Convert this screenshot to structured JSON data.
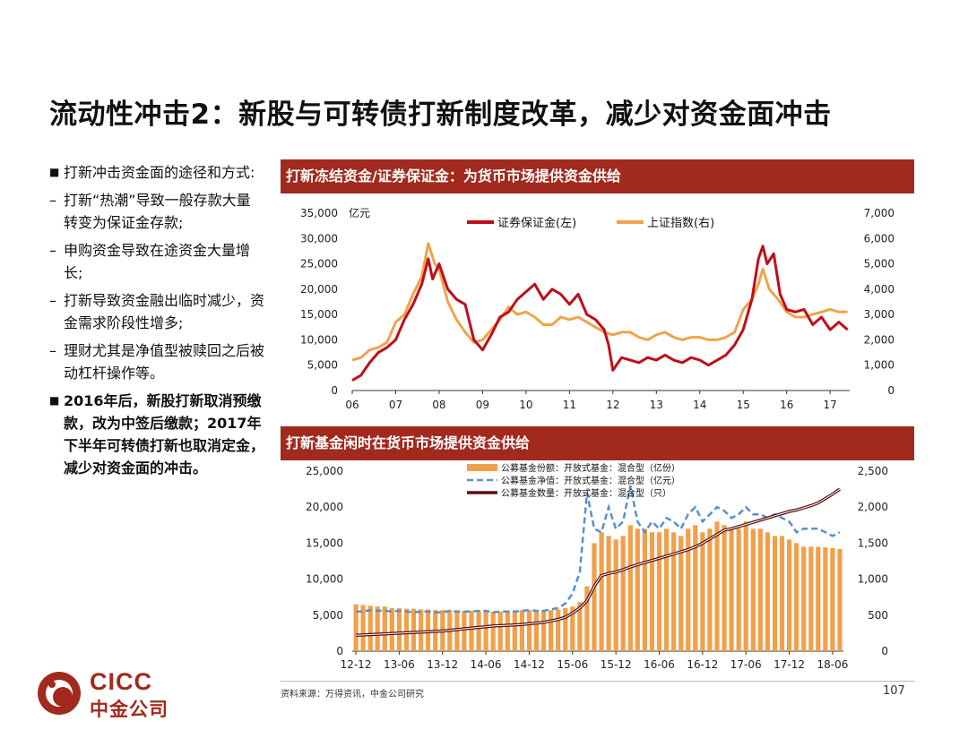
{
  "title": "流动性冲击2：新股与可转债打新制度改革，减少对资金面冲击",
  "bullets": [
    {
      "kind": "main",
      "marker": "■",
      "text": "打新冲击资金面的途径和方式:"
    },
    {
      "kind": "sub",
      "marker": "–",
      "text": "打新“热潮”导致一般存款大量转变为保证金存款;"
    },
    {
      "kind": "sub",
      "marker": "–",
      "text": "申购资金导致在途资金大量增长;"
    },
    {
      "kind": "sub",
      "marker": "–",
      "text": "打新导致资金融出临时减少，资金需求阶段性增多;"
    },
    {
      "kind": "sub",
      "marker": "–",
      "text": "理财尤其是净值型被赎回之后被动杠杆操作等。"
    },
    {
      "kind": "strong",
      "marker": "■",
      "text": "2016年后，新股打新取消预缴款，改为中签后缴款；2017年下半年可转债打新也取消定金，减少对资金面的冲击。"
    }
  ],
  "panel1": {
    "title": "打新冻结资金/证券保证金：为货币市场提供资金供给"
  },
  "panel2": {
    "title": "打新基金闲时在货币市场提供资金供给"
  },
  "source": "资料来源：万得资讯，中金公司研究",
  "page_number": "107",
  "logo": {
    "en": "CICC",
    "cn": "中金公司"
  },
  "colors": {
    "brand": "#a2291e",
    "deposit": "#c00d1a",
    "index": "#eea44c",
    "bar": "#f0a04b",
    "nav": "#5a8fd0",
    "count": "#5a1010"
  },
  "chart_data": [
    {
      "type": "line",
      "unit_label": "亿元",
      "x_ticks": [
        "06",
        "07",
        "08",
        "09",
        "10",
        "11",
        "12",
        "13",
        "14",
        "15",
        "16",
        "17"
      ],
      "ylim_left": [
        0,
        35000
      ],
      "yticks_left": [
        "0",
        "5,000",
        "10,000",
        "15,000",
        "20,000",
        "25,000",
        "30,000",
        "35,000"
      ],
      "ylim_right": [
        0,
        7000
      ],
      "yticks_right": [
        "0",
        "1,000",
        "2,000",
        "3,000",
        "4,000",
        "5,000",
        "6,000",
        "7,000"
      ],
      "legend": "top",
      "series": [
        {
          "name": "证券保证金(左)",
          "axis": "left",
          "x": [
            2006.0,
            2006.2,
            2006.4,
            2006.6,
            2006.8,
            2007.0,
            2007.2,
            2007.4,
            2007.6,
            2007.75,
            2007.85,
            2008.0,
            2008.2,
            2008.4,
            2008.6,
            2008.8,
            2009.0,
            2009.2,
            2009.4,
            2009.6,
            2009.8,
            2010.0,
            2010.2,
            2010.4,
            2010.6,
            2010.8,
            2011.0,
            2011.2,
            2011.4,
            2011.6,
            2011.8,
            2011.9,
            2012.0,
            2012.2,
            2012.4,
            2012.6,
            2012.8,
            2013.0,
            2013.2,
            2013.4,
            2013.6,
            2013.8,
            2014.0,
            2014.2,
            2014.4,
            2014.6,
            2014.8,
            2015.0,
            2015.2,
            2015.35,
            2015.45,
            2015.55,
            2015.7,
            2015.85,
            2016.0,
            2016.2,
            2016.4,
            2016.6,
            2016.8,
            2017.0,
            2017.2,
            2017.4
          ],
          "y": [
            2000,
            3000,
            5500,
            7500,
            8500,
            10000,
            14000,
            17000,
            21000,
            26000,
            22000,
            25000,
            20000,
            18000,
            17000,
            10000,
            8000,
            11000,
            14500,
            15500,
            18000,
            19500,
            21000,
            18000,
            20000,
            19000,
            17000,
            19000,
            15000,
            14000,
            12000,
            9000,
            4000,
            6500,
            6000,
            5500,
            6500,
            6000,
            7000,
            6000,
            5500,
            6500,
            6000,
            5000,
            6000,
            7000,
            9000,
            12000,
            18000,
            26000,
            28500,
            25000,
            27000,
            19000,
            16000,
            15500,
            16000,
            13000,
            14500,
            12000,
            13500,
            12000
          ]
        },
        {
          "name": "上证指数(右)",
          "axis": "right",
          "x": [
            2006.0,
            2006.2,
            2006.4,
            2006.6,
            2006.8,
            2007.0,
            2007.2,
            2007.4,
            2007.6,
            2007.75,
            2007.9,
            2008.0,
            2008.2,
            2008.4,
            2008.6,
            2008.8,
            2009.0,
            2009.2,
            2009.4,
            2009.6,
            2009.8,
            2010.0,
            2010.2,
            2010.4,
            2010.6,
            2010.8,
            2011.0,
            2011.2,
            2011.4,
            2011.6,
            2011.8,
            2012.0,
            2012.2,
            2012.4,
            2012.6,
            2012.8,
            2013.0,
            2013.2,
            2013.4,
            2013.6,
            2013.8,
            2014.0,
            2014.2,
            2014.4,
            2014.6,
            2014.8,
            2015.0,
            2015.2,
            2015.35,
            2015.45,
            2015.6,
            2015.8,
            2016.0,
            2016.2,
            2016.4,
            2016.6,
            2016.8,
            2017.0,
            2017.2,
            2017.4
          ],
          "y": [
            1200,
            1300,
            1600,
            1700,
            1900,
            2700,
            3000,
            3800,
            4500,
            5800,
            5000,
            4800,
            3500,
            2800,
            2300,
            1900,
            2000,
            2400,
            2800,
            3300,
            3000,
            3100,
            2900,
            2600,
            2600,
            2900,
            2800,
            2900,
            2700,
            2500,
            2300,
            2200,
            2300,
            2300,
            2100,
            2000,
            2200,
            2300,
            2100,
            2000,
            2100,
            2100,
            2000,
            2000,
            2100,
            2300,
            3200,
            3600,
            4200,
            4800,
            4000,
            3600,
            3100,
            2900,
            2900,
            3000,
            3100,
            3200,
            3100,
            3100
          ]
        }
      ]
    },
    {
      "type": "bar",
      "x_ticks": [
        "12-12",
        "13-06",
        "13-12",
        "14-06",
        "14-12",
        "15-06",
        "15-12",
        "16-06",
        "16-12",
        "17-06",
        "17-12",
        "18-06"
      ],
      "ylim_left": [
        0,
        25000
      ],
      "yticks_left": [
        "0",
        "5,000",
        "10,000",
        "15,000",
        "20,000",
        "25,000"
      ],
      "ylim_right": [
        0,
        2500
      ],
      "yticks_right": [
        "0",
        "500",
        "1,000",
        "1,500",
        "2,000",
        "2,500"
      ],
      "legend": "top-left",
      "series": [
        {
          "name": "公募基金份额：开放式基金：混合型（亿份）",
          "kind": "bar",
          "axis": "left",
          "values": [
            6500,
            6400,
            6300,
            6200,
            6200,
            6000,
            6000,
            5900,
            5900,
            5800,
            5800,
            5700,
            5700,
            5700,
            5600,
            5600,
            5600,
            5600,
            5500,
            5500,
            5500,
            5600,
            5600,
            5700,
            5700,
            5700,
            5700,
            5700,
            5800,
            6000,
            6200,
            6800,
            9000,
            15000,
            16500,
            16000,
            15500,
            16000,
            17500,
            17000,
            17000,
            16500,
            16500,
            17000,
            16500,
            16000,
            17000,
            17500,
            16500,
            17000,
            18000,
            17500,
            17000,
            17000,
            18000,
            17000,
            17000,
            16500,
            16000,
            16000,
            15500,
            15000,
            14500,
            14500,
            14500,
            14400,
            14300,
            14200
          ]
        },
        {
          "name": "公募基金净值：开放式基金：混合型（亿元）",
          "kind": "line",
          "axis": "right",
          "values": [
            550,
            550,
            570,
            560,
            560,
            550,
            560,
            550,
            540,
            550,
            550,
            540,
            540,
            560,
            550,
            550,
            550,
            560,
            560,
            540,
            550,
            550,
            550,
            560,
            570,
            560,
            560,
            580,
            600,
            660,
            800,
            1100,
            2200,
            1700,
            1650,
            2000,
            1700,
            1800,
            2300,
            1800,
            1650,
            1800,
            1700,
            1850,
            1800,
            1700,
            1900,
            2000,
            1800,
            1900,
            2000,
            1950,
            1850,
            1900,
            2000,
            1900,
            1900,
            1850,
            1900,
            1850,
            1800,
            1650,
            1700,
            1700,
            1700,
            1650,
            1600,
            1650
          ]
        },
        {
          "name": "公募基金数量：开放式基金：混合型（只）",
          "kind": "line",
          "axis": "right",
          "values": [
            220,
            225,
            230,
            235,
            240,
            245,
            250,
            255,
            260,
            265,
            270,
            275,
            280,
            290,
            300,
            310,
            320,
            330,
            340,
            350,
            355,
            360,
            365,
            370,
            380,
            390,
            400,
            420,
            440,
            470,
            530,
            600,
            700,
            900,
            1050,
            1080,
            1100,
            1130,
            1170,
            1200,
            1230,
            1260,
            1290,
            1320,
            1350,
            1380,
            1410,
            1450,
            1500,
            1560,
            1620,
            1680,
            1700,
            1730,
            1760,
            1790,
            1820,
            1850,
            1880,
            1910,
            1940,
            1960,
            1990,
            2020,
            2060,
            2120,
            2180,
            2250
          ]
        }
      ]
    }
  ]
}
